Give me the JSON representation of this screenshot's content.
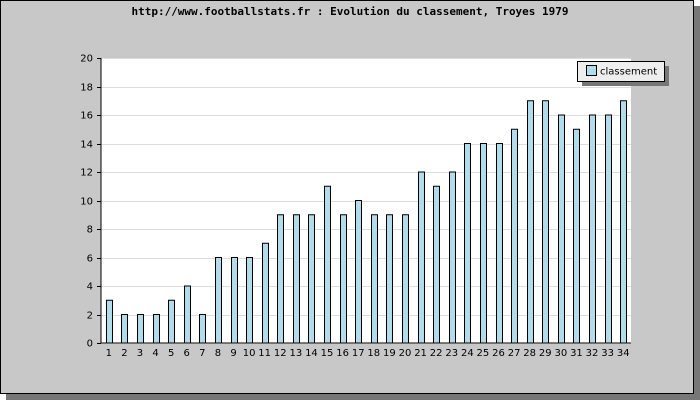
{
  "chart_data": {
    "type": "bar",
    "title": "http://www.footballstats.fr : Evolution du classement, Troyes 1979",
    "categories": [
      "1",
      "2",
      "3",
      "4",
      "5",
      "6",
      "7",
      "8",
      "9",
      "10",
      "11",
      "12",
      "13",
      "14",
      "15",
      "16",
      "17",
      "18",
      "19",
      "20",
      "21",
      "22",
      "23",
      "24",
      "25",
      "26",
      "27",
      "28",
      "29",
      "30",
      "31",
      "32",
      "33",
      "34"
    ],
    "series": [
      {
        "name": "classement",
        "color": "#b0dceb",
        "values": [
          3,
          2,
          2,
          2,
          3,
          4,
          2,
          6,
          6,
          6,
          7,
          9,
          9,
          9,
          11,
          9,
          10,
          9,
          9,
          9,
          12,
          11,
          12,
          14,
          14,
          14,
          15,
          17,
          17,
          16,
          15,
          16,
          16,
          17
        ]
      }
    ],
    "ylim": [
      0,
      20
    ],
    "yticks": [
      0,
      2,
      4,
      6,
      8,
      10,
      12,
      14,
      16,
      18,
      20
    ],
    "grid": true,
    "legend": "top-right"
  }
}
